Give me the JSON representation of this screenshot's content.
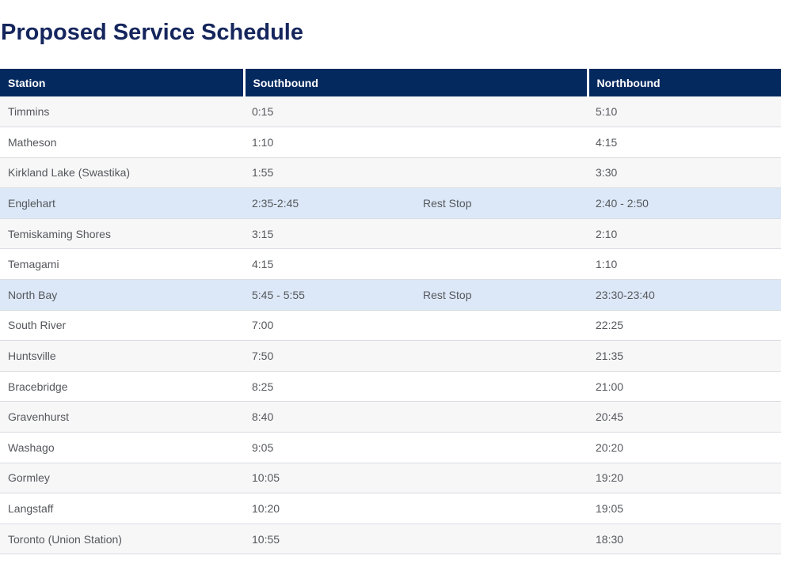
{
  "page": {
    "title": "Proposed Service Schedule"
  },
  "colors": {
    "navy": "#04295f",
    "title": "#15265d",
    "text": "#55575c",
    "border": "#d9dce1",
    "row-gray": "#f7f7f8",
    "row-blue": "#dce8f7"
  },
  "table": {
    "columns": {
      "station": "Station",
      "southbound": "Southbound",
      "northbound": "Northbound"
    },
    "rows": [
      {
        "station": "Timmins",
        "southbound": "0:15",
        "note": "",
        "northbound": "5:10",
        "highlight": false
      },
      {
        "station": "Matheson",
        "southbound": "1:10",
        "note": "",
        "northbound": "4:15",
        "highlight": false
      },
      {
        "station": "Kirkland Lake (Swastika)",
        "southbound": "1:55",
        "note": "",
        "northbound": "3:30",
        "highlight": false
      },
      {
        "station": "Englehart",
        "southbound": "2:35-2:45",
        "note": "Rest Stop",
        "northbound": "2:40 - 2:50",
        "highlight": true
      },
      {
        "station": "Temiskaming Shores",
        "southbound": "3:15",
        "note": "",
        "northbound": "2:10",
        "highlight": false
      },
      {
        "station": "Temagami",
        "southbound": "4:15",
        "note": "",
        "northbound": "1:10",
        "highlight": false
      },
      {
        "station": "North Bay",
        "southbound": "5:45 - 5:55",
        "note": "Rest Stop",
        "northbound": "23:30-23:40",
        "highlight": true
      },
      {
        "station": "South River",
        "southbound": "7:00",
        "note": "",
        "northbound": "22:25",
        "highlight": false
      },
      {
        "station": "Huntsville",
        "southbound": "7:50",
        "note": "",
        "northbound": "21:35",
        "highlight": false
      },
      {
        "station": "Bracebridge",
        "southbound": "8:25",
        "note": "",
        "northbound": "21:00",
        "highlight": false
      },
      {
        "station": "Gravenhurst",
        "southbound": "8:40",
        "note": "",
        "northbound": "20:45",
        "highlight": false
      },
      {
        "station": "Washago",
        "southbound": "9:05",
        "note": "",
        "northbound": "20:20",
        "highlight": false
      },
      {
        "station": "Gormley",
        "southbound": "10:05",
        "note": "",
        "northbound": "19:20",
        "highlight": false
      },
      {
        "station": "Langstaff",
        "southbound": "10:20",
        "note": "",
        "northbound": "19:05",
        "highlight": false
      },
      {
        "station": "Toronto (Union Station)",
        "southbound": "10:55",
        "note": "",
        "northbound": "18:30",
        "highlight": false
      }
    ]
  }
}
